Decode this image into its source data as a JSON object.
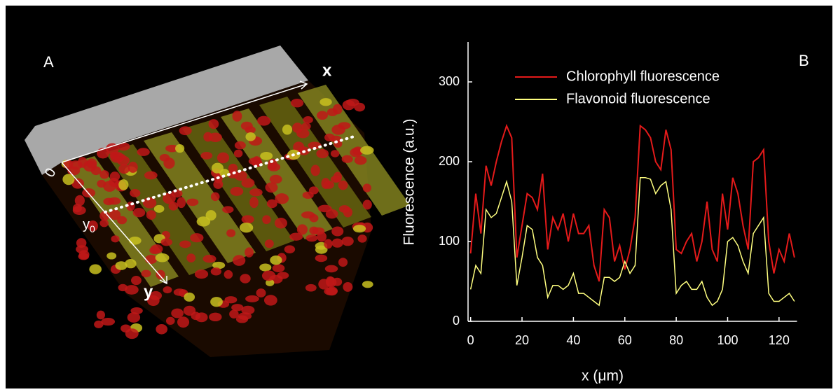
{
  "panel_a": {
    "label": "A",
    "x_axis": "x",
    "origin": "0",
    "y0_base": "y",
    "y0_sub": "0",
    "y_axis": "y"
  },
  "chart_data": {
    "type": "line",
    "panel_label": "B",
    "xlabel": "x (μm)",
    "ylabel": "Fluorescence (a.u.)",
    "x": [
      0,
      2,
      4,
      6,
      8,
      10,
      12,
      14,
      16,
      18,
      20,
      22,
      24,
      26,
      28,
      30,
      32,
      34,
      36,
      38,
      40,
      42,
      44,
      46,
      48,
      50,
      52,
      54,
      56,
      58,
      60,
      62,
      64,
      66,
      68,
      70,
      72,
      74,
      76,
      78,
      80,
      82,
      84,
      86,
      88,
      90,
      92,
      94,
      96,
      98,
      100,
      102,
      104,
      106,
      108,
      110,
      112,
      114,
      116,
      118,
      120,
      122,
      124,
      126
    ],
    "series": [
      {
        "name": "Chlorophyll fluorescence",
        "color": "#e41a1a",
        "values": [
          85,
          160,
          110,
          195,
          170,
          200,
          225,
          245,
          230,
          80,
          120,
          160,
          155,
          140,
          185,
          90,
          130,
          115,
          135,
          100,
          135,
          110,
          110,
          120,
          70,
          50,
          140,
          130,
          75,
          95,
          65,
          90,
          130,
          245,
          240,
          230,
          200,
          190,
          240,
          215,
          90,
          85,
          100,
          110,
          75,
          100,
          150,
          90,
          75,
          160,
          115,
          180,
          160,
          120,
          90,
          200,
          205,
          215,
          100,
          60,
          90,
          75,
          110,
          80
        ]
      },
      {
        "name": "Flavonoid fluorescence",
        "color": "#ffff80",
        "values": [
          40,
          70,
          60,
          140,
          130,
          135,
          155,
          175,
          150,
          45,
          80,
          120,
          115,
          80,
          70,
          30,
          45,
          45,
          40,
          45,
          60,
          35,
          35,
          30,
          25,
          20,
          55,
          55,
          50,
          55,
          75,
          60,
          70,
          180,
          180,
          178,
          160,
          170,
          175,
          140,
          35,
          45,
          50,
          40,
          40,
          50,
          30,
          20,
          25,
          40,
          100,
          105,
          95,
          75,
          60,
          110,
          120,
          130,
          35,
          25,
          25,
          30,
          35,
          25
        ]
      }
    ],
    "xlim": [
      -1,
      127
    ],
    "ylim": [
      0,
      350
    ],
    "xticks": [
      0,
      20,
      40,
      60,
      80,
      100,
      120
    ],
    "yticks": [
      0,
      100,
      200,
      300
    ]
  }
}
